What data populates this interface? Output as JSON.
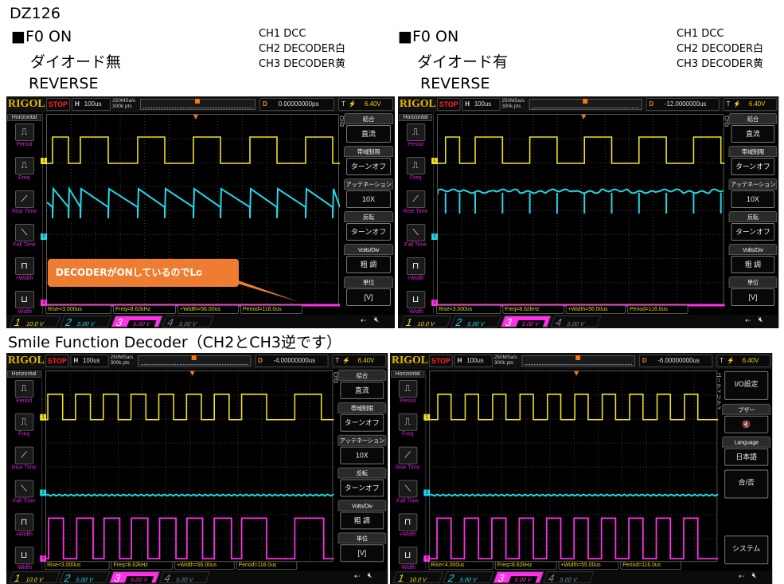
{
  "title": "DZ126",
  "left_caption": {
    "line1": "■F0 ON",
    "line2": "ダイオード無",
    "line3": "REVERSE",
    "ch1": "CH1 DCC",
    "ch2": "CH2 DECODER白",
    "ch3": "CH3 DECODER黄"
  },
  "right_caption": {
    "line1": "■F0 ON",
    "line2": "ダイオード有",
    "line3": "REVERSE",
    "ch1": "CH1 DCC",
    "ch2": "CH2 DECODER白",
    "ch3": "CH3 DECODER黄"
  },
  "section2_title": "Smile Function Decoder（CH2とCH3逆です）",
  "colors": {
    "ch1": "#f0e020",
    "ch2": "#20d8e8",
    "ch3": "#ff30e8",
    "ch4": "#7a8a9a",
    "callout": "#ef7d31",
    "brand": "#e8b800"
  },
  "common": {
    "logo": "RIGOL",
    "status": "STOP",
    "h_label": "H",
    "timebase": "100us",
    "sample_rate": "250MSa/s",
    "mem_depth": "300k pts",
    "d_label": "D",
    "t_label": "T",
    "trigger_level": "6.40V",
    "horizontal": "Horizontal",
    "measure_buttons": [
      {
        "label": "Period",
        "icon": "period-icon"
      },
      {
        "label": "Freq",
        "icon": "freq-icon"
      },
      {
        "label": "Rise Time",
        "icon": "rise-time-icon"
      },
      {
        "label": "Fall Time",
        "icon": "fall-time-icon"
      },
      {
        "label": "+Width",
        "icon": "positive-width-icon"
      },
      {
        "label": "-Width",
        "icon": "negative-width-icon"
      }
    ],
    "channels": [
      {
        "num": "1",
        "scale": "10.0 V"
      },
      {
        "num": "2",
        "scale": "5.00 V"
      },
      {
        "num": "3",
        "scale": "5.00 V"
      },
      {
        "num": "4",
        "scale": "5.00 V"
      }
    ]
  },
  "ch_menu": {
    "side_label": "CH3",
    "items": [
      {
        "title": "結合",
        "value": "直流"
      },
      {
        "title": "帯域制限",
        "value": "ターンオフ"
      },
      {
        "title": "アッテネーション",
        "value": "10X"
      },
      {
        "title": "反転",
        "value": "ターンオフ"
      },
      {
        "title": "Volts/Div",
        "value": "粗 調"
      },
      {
        "title": "単位",
        "value": "[V]"
      }
    ]
  },
  "util_menu": {
    "side_label": "ユーティリティ",
    "items": [
      {
        "title": "",
        "value": "I/O設定"
      },
      {
        "title": "ブザー",
        "value": "🔇"
      },
      {
        "title": "Language",
        "value": "日本語"
      },
      {
        "title": "",
        "value": "合/否"
      },
      {
        "title": "",
        "value": ""
      },
      {
        "title": "",
        "value": "システム"
      }
    ]
  },
  "scopes": [
    {
      "delay": "0.00000000ps",
      "menu": "ch_menu",
      "callout": "DECODERがONしているのでLo",
      "meas": {
        "rise": "Rise<3.000us",
        "freq": "Freq=8.62kHz",
        "pwidth": "+Width=56.00us",
        "period": "Period=116.0us"
      }
    },
    {
      "delay": "-12.0000000us",
      "menu": "ch_menu",
      "meas": {
        "rise": "Rise<3.000us",
        "freq": "Freq=8.62kHz",
        "pwidth": "+Width=56.00us",
        "period": "Period=116.0us"
      }
    },
    {
      "delay": "-4.00000000us",
      "menu": "ch_menu",
      "meas": {
        "rise": "Rise<3.000us",
        "freq": "Freq=8.62kHz",
        "pwidth": "+Width=56.00us",
        "period": "Period=116.0us"
      }
    },
    {
      "delay": "-6.00000000us",
      "menu": "util_menu",
      "meas": {
        "rise": "Rise<4.000us",
        "freq": "Freq=8.62kHz",
        "pwidth": "+Width=55.00us",
        "period": "Period=116.0us"
      }
    }
  ]
}
